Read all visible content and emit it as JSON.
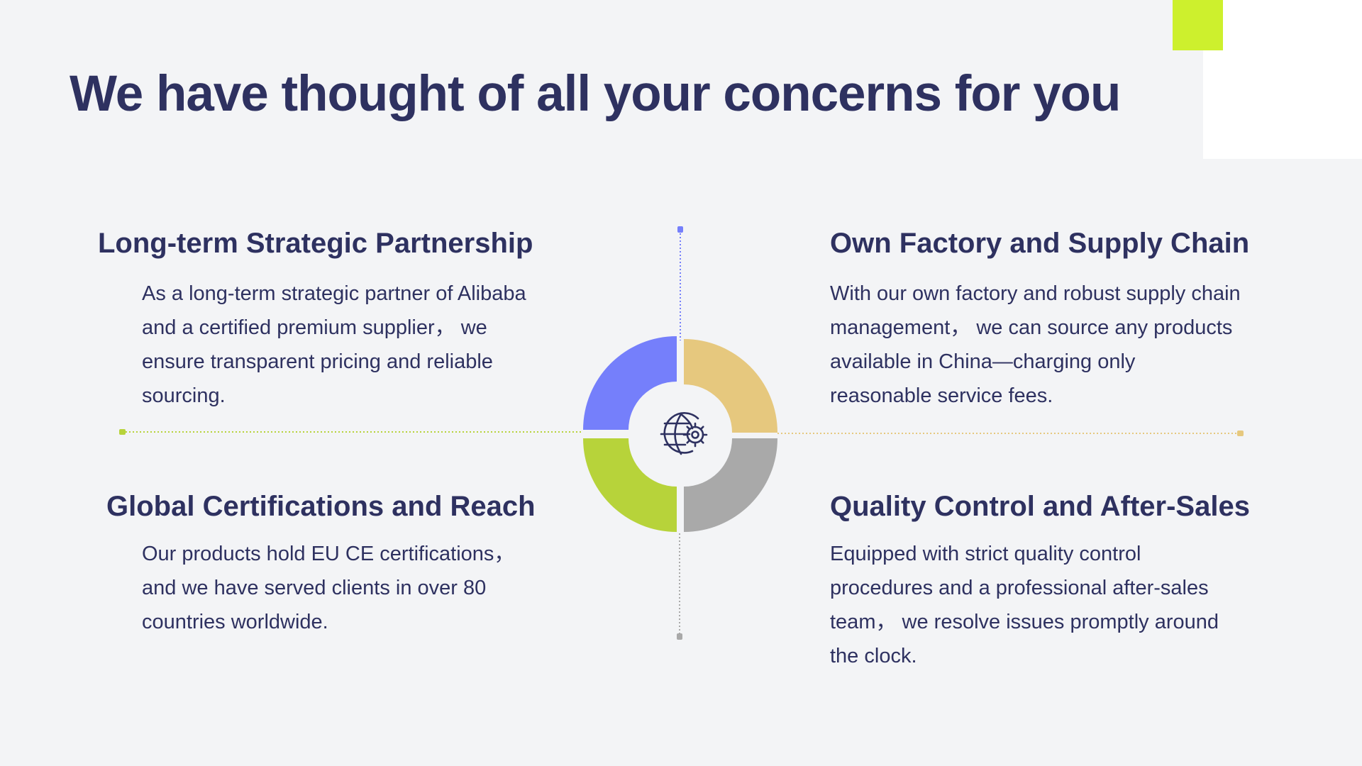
{
  "title": "We have thought of all your concerns for you",
  "sections": {
    "top_left": {
      "heading": "Long-term Strategic Partnership",
      "body": "As a long-term strategic partner of Alibaba and a certified premium supplier，  we ensure transparent pricing and reliable sourcing."
    },
    "top_right": {
      "heading": "Own Factory and Supply Chain",
      "body": "With our own factory and robust supply chain management，  we can source any products available in China—charging only reasonable service fees."
    },
    "bottom_left": {
      "heading": "Global Certifications and Reach",
      "body": "Our products hold EU CE certifications，and we have served clients in over 80 countries worldwide."
    },
    "bottom_right": {
      "heading": "Quality Control and After-Sales",
      "body": "Equipped with strict quality control procedures and a professional after-sales team，  we resolve issues promptly around the clock."
    }
  },
  "colors": {
    "text": "#2e3160",
    "blue": "#757ffb",
    "gold": "#e6c87e",
    "green": "#b7d33a",
    "gray": "#a9a9a9",
    "lime_accent": "#cdf02d"
  },
  "center_icon": "globe-gear-icon"
}
